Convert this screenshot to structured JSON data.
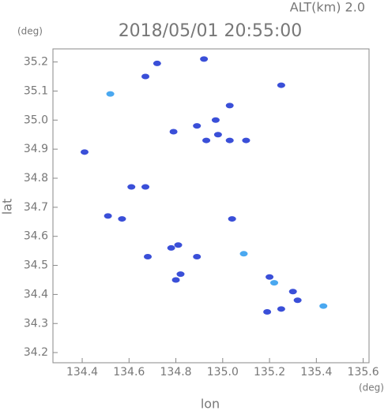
{
  "chart_data": {
    "type": "scatter",
    "title": "2018/05/01 20:55:00",
    "subtitle": "ALT(km) 2.0",
    "y_unit": "(deg)",
    "x_unit": "(deg)",
    "x_label": "lon",
    "y_label": "lat",
    "xlim": [
      134.275,
      135.625
    ],
    "ylim": [
      34.165,
      35.245
    ],
    "xticks": [
      134.4,
      134.6,
      134.8,
      {
        "value": 135,
        "label": "135.0"
      },
      135.2,
      135.4,
      135.6
    ],
    "yticks": [
      35.2,
      35.1,
      {
        "value": 35,
        "label": "35.0"
      },
      34.9,
      34.8,
      34.7,
      34.6,
      34.5,
      34.4,
      34.3,
      34.2
    ],
    "series": [
      {
        "color": "#3a4fd8",
        "x": [
          134.72,
          134.67,
          134.92,
          135.25,
          135.03,
          134.79,
          134.89,
          134.97,
          134.98,
          134.93,
          135.03,
          135.1,
          134.41,
          134.61,
          134.67,
          134.51,
          134.57,
          135.04,
          134.68,
          134.78,
          134.81,
          134.89,
          134.8,
          134.82,
          135.2,
          135.3,
          135.32,
          135.19,
          135.25
        ],
        "values": [
          35.195,
          35.15,
          35.21,
          35.12,
          35.05,
          34.96,
          34.98,
          35.0,
          34.95,
          34.93,
          34.93,
          34.93,
          34.89,
          34.77,
          34.77,
          34.67,
          34.66,
          34.66,
          34.53,
          34.56,
          34.57,
          34.53,
          34.45,
          34.47,
          34.46,
          34.41,
          34.38,
          34.34,
          34.35
        ]
      },
      {
        "color": "#4aa8f0",
        "x": [
          134.52,
          135.09,
          135.22,
          135.43
        ],
        "values": [
          35.09,
          34.54,
          34.44,
          34.36
        ]
      }
    ]
  }
}
